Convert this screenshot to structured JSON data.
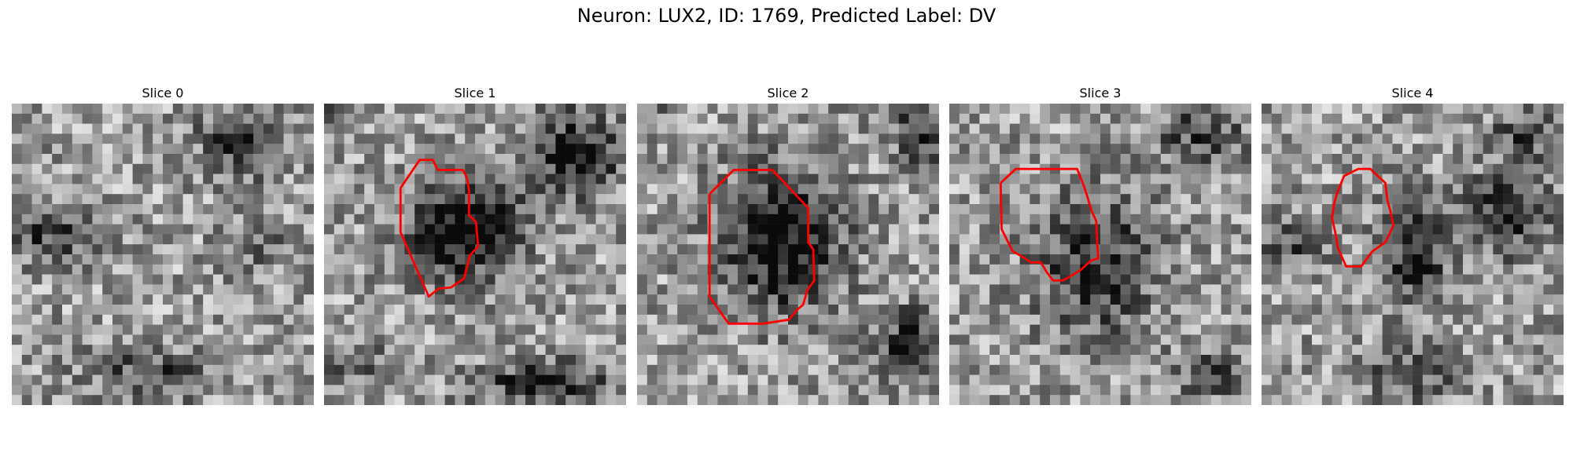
{
  "figure": {
    "title": "Neuron: LUX2, ID: 1769, Predicted Label: DV"
  },
  "slices": [
    {
      "title": "Slice 0",
      "has_contour": false
    },
    {
      "title": "Slice 1",
      "has_contour": true
    },
    {
      "title": "Slice 2",
      "has_contour": true
    },
    {
      "title": "Slice 3",
      "has_contour": true
    },
    {
      "title": "Slice 4",
      "has_contour": true
    }
  ],
  "colors": {
    "contour": "#ff0000",
    "background": "#ffffff"
  }
}
